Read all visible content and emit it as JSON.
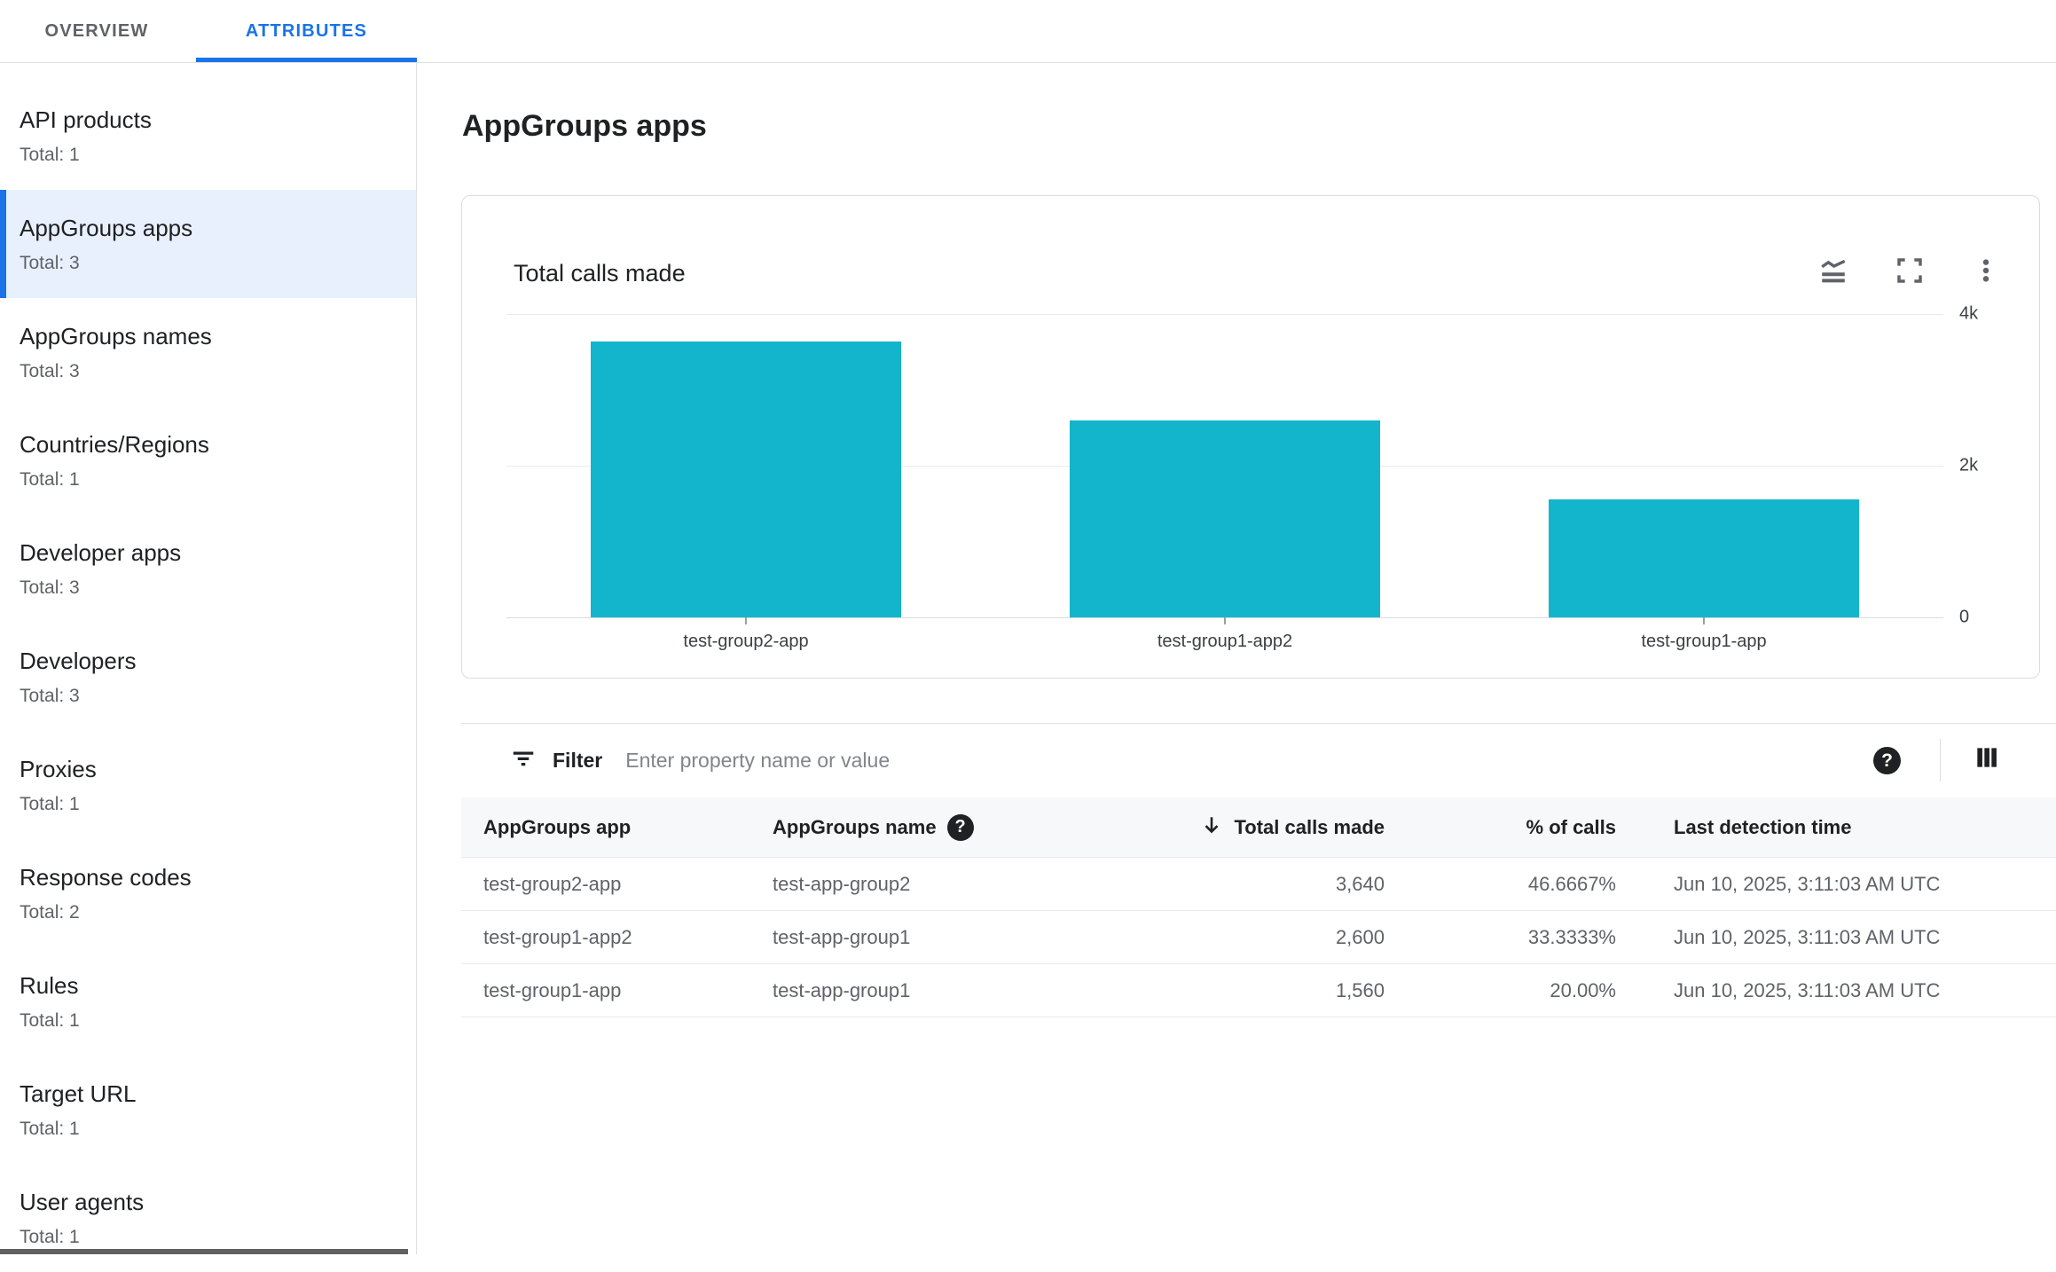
{
  "tabs": {
    "overview": "OVERVIEW",
    "attributes": "ATTRIBUTES"
  },
  "sidebar": {
    "items": [
      {
        "label": "API products",
        "total": "Total: 1",
        "selected": false
      },
      {
        "label": "AppGroups apps",
        "total": "Total: 3",
        "selected": true
      },
      {
        "label": "AppGroups names",
        "total": "Total: 3",
        "selected": false
      },
      {
        "label": "Countries/Regions",
        "total": "Total: 1",
        "selected": false
      },
      {
        "label": "Developer apps",
        "total": "Total: 3",
        "selected": false
      },
      {
        "label": "Developers",
        "total": "Total: 3",
        "selected": false
      },
      {
        "label": "Proxies",
        "total": "Total: 1",
        "selected": false
      },
      {
        "label": "Response codes",
        "total": "Total: 2",
        "selected": false
      },
      {
        "label": "Rules",
        "total": "Total: 1",
        "selected": false
      },
      {
        "label": "Target URL",
        "total": "Total: 1",
        "selected": false
      },
      {
        "label": "User agents",
        "total": "Total: 1",
        "selected": false
      }
    ]
  },
  "page": {
    "title": "AppGroups apps"
  },
  "chart_card": {
    "title": "Total calls made",
    "icons": [
      "chart-type",
      "fullscreen",
      "more-vert"
    ]
  },
  "chart_data": {
    "type": "bar",
    "title": "Total calls made",
    "categories": [
      "test-group2-app",
      "test-group1-app2",
      "test-group1-app"
    ],
    "values": [
      3640,
      2600,
      1560
    ],
    "ylim": [
      0,
      4000
    ],
    "yticks": [
      {
        "label": "4k",
        "value": 4000
      },
      {
        "label": "2k",
        "value": 2000
      },
      {
        "label": "0",
        "value": 0
      }
    ],
    "bar_color": "#12b5cb",
    "grid": true,
    "y_axis_side": "right",
    "legend": null
  },
  "filter": {
    "label": "Filter",
    "placeholder": "Enter property name or value"
  },
  "table": {
    "columns": [
      "AppGroups app",
      "AppGroups name",
      "Total calls made",
      "% of calls",
      "Last detection time"
    ],
    "sorted_column": "Total calls made",
    "sort_direction": "descending",
    "rows": [
      {
        "app": "test-group2-app",
        "name": "test-app-group2",
        "calls": "3,640",
        "pct": "46.6667%",
        "last": "Jun 10, 2025, 3:11:03 AM UTC"
      },
      {
        "app": "test-group1-app2",
        "name": "test-app-group1",
        "calls": "2,600",
        "pct": "33.3333%",
        "last": "Jun 10, 2025, 3:11:03 AM UTC"
      },
      {
        "app": "test-group1-app",
        "name": "test-app-group1",
        "calls": "1,560",
        "pct": "20.00%",
        "last": "Jun 10, 2025, 3:11:03 AM UTC"
      }
    ]
  },
  "colors": {
    "accent": "#1a73e8",
    "bar": "#12b5cb",
    "selected_bg": "#e8f0fe",
    "text_primary": "#202124",
    "text_secondary": "#5f6368",
    "border": "#e0e0e0"
  }
}
